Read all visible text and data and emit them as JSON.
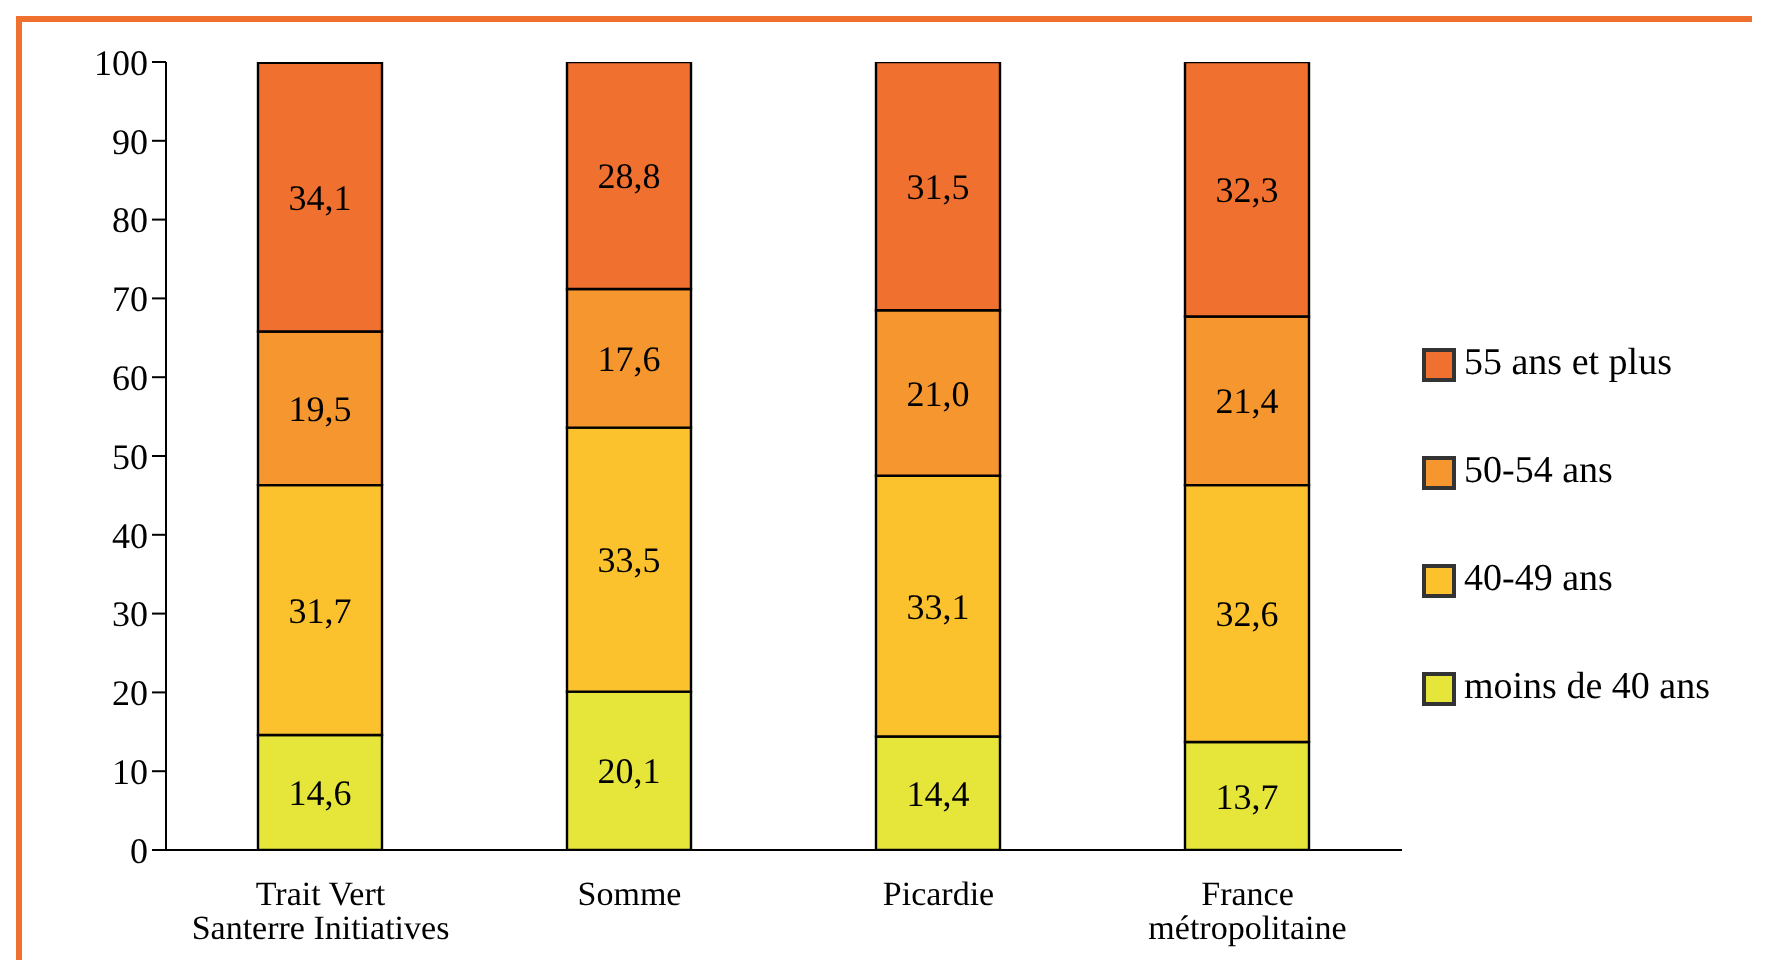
{
  "chart_data": {
    "type": "bar",
    "stacked": true,
    "categories": [
      "Trait Vert\nSanterre Initiatives",
      "Somme",
      "Picardie",
      "France\nmétropolitaine"
    ],
    "series": [
      {
        "name": "moins de 40 ans",
        "color": "#e6e63a",
        "values": [
          14.6,
          20.1,
          14.4,
          13.7
        ],
        "value_labels": [
          "14,6",
          "20,1",
          "14,4",
          "13,7"
        ]
      },
      {
        "name": "40-49 ans",
        "color": "#fcc22e",
        "values": [
          31.7,
          33.5,
          33.1,
          32.6
        ],
        "value_labels": [
          "31,7",
          "33,5",
          "33,1",
          "32,6"
        ]
      },
      {
        "name": "50-54 ans",
        "color": "#f5962e",
        "values": [
          19.5,
          17.6,
          21.0,
          21.4
        ],
        "value_labels": [
          "19,5",
          "17,6",
          "21,0",
          "21,4"
        ]
      },
      {
        "name": "55 ans et plus",
        "color": "#f07030",
        "values": [
          34.1,
          28.8,
          31.5,
          32.3
        ],
        "value_labels": [
          "34,1",
          "28,8",
          "31,5",
          "32,3"
        ]
      }
    ],
    "ylim": [
      0,
      100
    ],
    "yticks": [
      0,
      10,
      20,
      30,
      40,
      50,
      60,
      70,
      80,
      90,
      100
    ],
    "legend": "right",
    "grid": false
  }
}
